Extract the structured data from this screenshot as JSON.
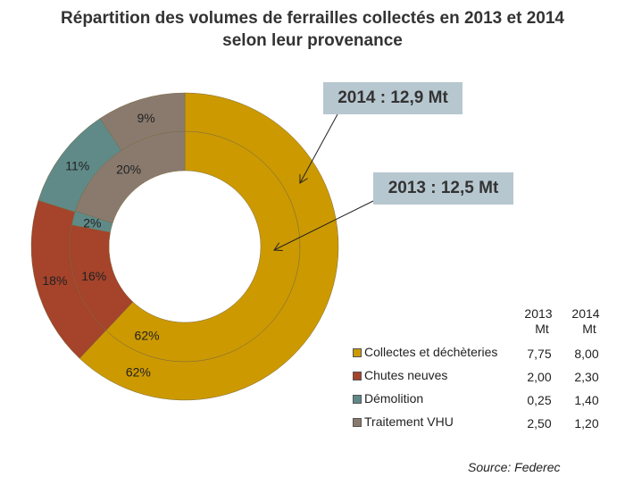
{
  "chart_data": {
    "type": "pie",
    "title": "Répartition des volumes de ferrailles collectés en 2013 et 2014",
    "subtitle": "selon leur provenance",
    "categories": [
      "Collectes et déchèteries",
      "Chutes neuves",
      "Démolition",
      "Traitement VHU"
    ],
    "colors": [
      "#CC9900",
      "#A5432B",
      "#5F8A88",
      "#8A7A6E"
    ],
    "series": [
      {
        "name": "2013",
        "ring": "inner",
        "values": [
          7.75,
          2.0,
          0.25,
          2.5
        ],
        "labels": [
          "62%",
          "16%",
          "2%",
          "20%"
        ],
        "total_label": "2013 : 12,5 Mt"
      },
      {
        "name": "2014",
        "ring": "outer",
        "values": [
          8.0,
          2.3,
          1.4,
          1.2
        ],
        "labels": [
          "62%",
          "18%",
          "11%",
          "9%"
        ],
        "total_label": "2014 : 12,9 Mt"
      }
    ],
    "table": {
      "headers": [
        [
          "2013",
          "Mt"
        ],
        [
          "2014",
          "Mt"
        ]
      ],
      "rows": [
        [
          "7,75",
          "8,00"
        ],
        [
          "2,00",
          "2,30"
        ],
        [
          "0,25",
          "1,40"
        ],
        [
          "2,50",
          "1,20"
        ]
      ]
    },
    "source": "Source: Federec"
  }
}
